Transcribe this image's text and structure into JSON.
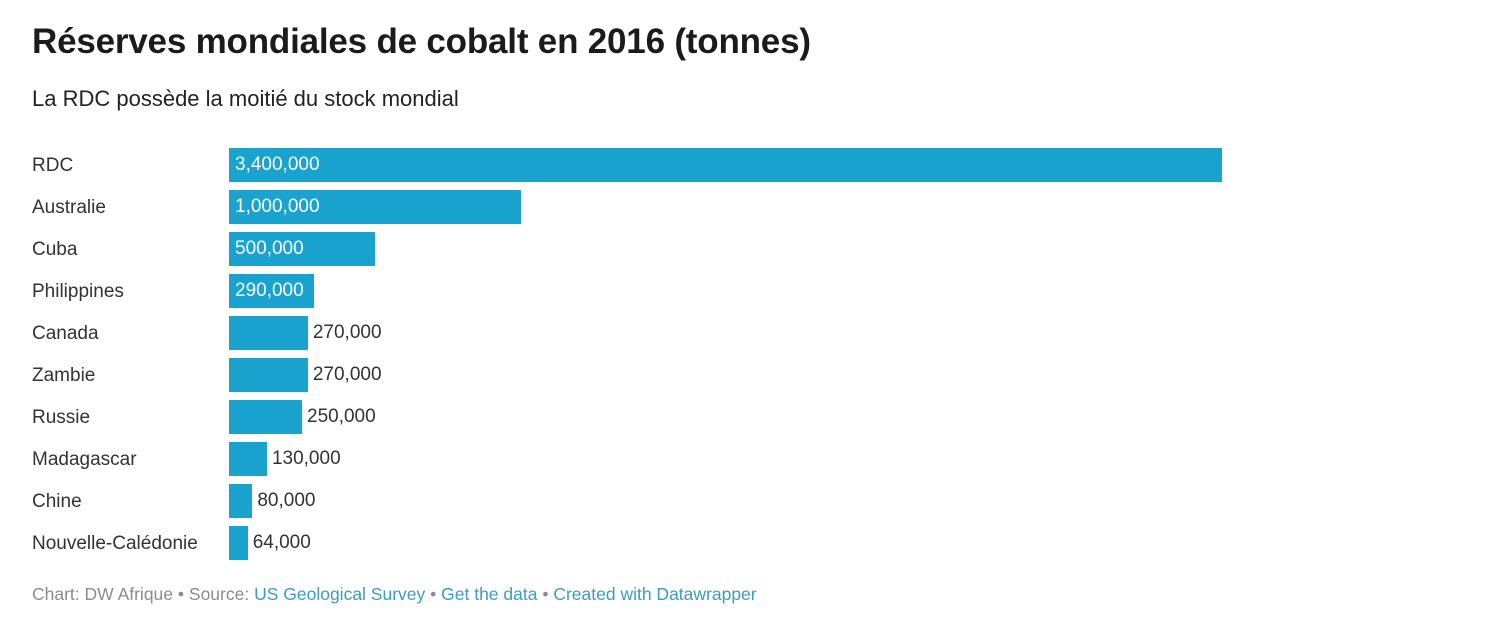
{
  "chart_data": {
    "type": "bar",
    "orientation": "horizontal",
    "title": "Réserves mondiales de cobalt en 2016 (tonnes)",
    "subtitle": "La RDC possède la moitié du stock mondial",
    "categories": [
      "RDC",
      "Australie",
      "Cuba",
      "Philippines",
      "Canada",
      "Zambie",
      "Russie",
      "Madagascar",
      "Chine",
      "Nouvelle-Calédonie"
    ],
    "values": [
      3400000,
      1000000,
      500000,
      290000,
      270000,
      270000,
      250000,
      130000,
      80000,
      64000
    ],
    "value_labels": [
      "3,400,000",
      "1,000,000",
      "500,000",
      "290,000",
      "270,000",
      "270,000",
      "250,000",
      "130,000",
      "80,000",
      "64,000"
    ],
    "xlim": [
      0,
      3400000
    ],
    "bar_color": "#1aa3cf",
    "grid": false,
    "legend": "none"
  },
  "footer": {
    "chart_credit": "Chart: DW Afrique",
    "separator": " • ",
    "source_prefix": "Source: ",
    "source_link": "US Geological Survey",
    "get_data": "Get the data",
    "created_with": "Created with Datawrapper"
  }
}
